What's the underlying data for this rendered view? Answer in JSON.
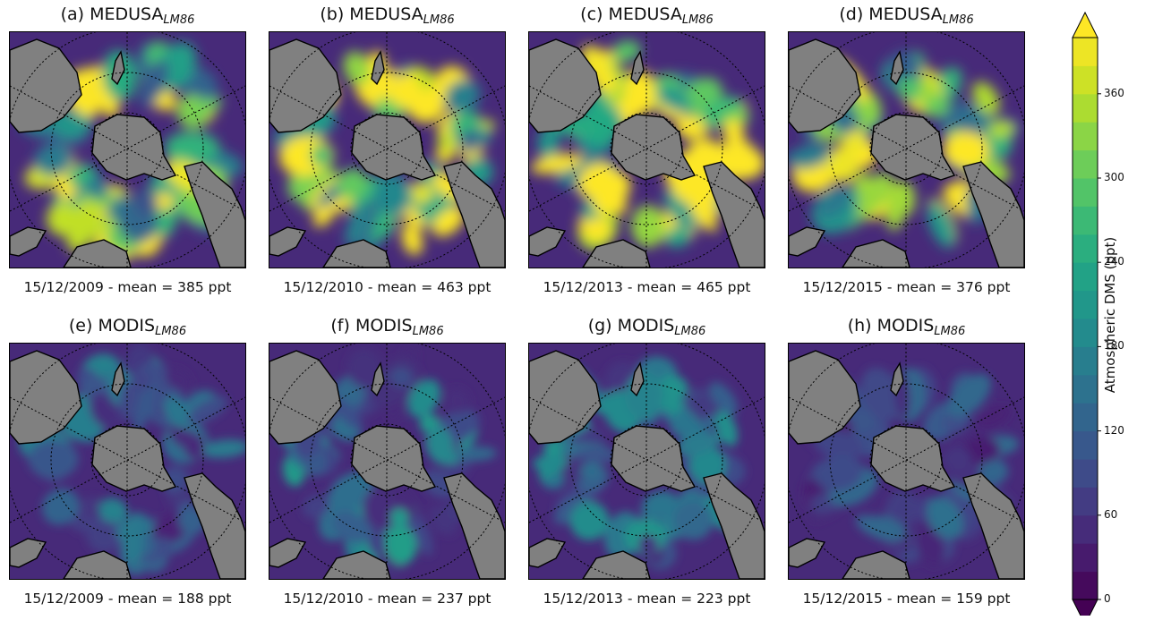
{
  "panels": [
    {
      "id": "a",
      "title_prefix": "(a) MEDUSA",
      "title_sub": "LM86",
      "caption": "15/12/2009 - mean = 385 ppt",
      "mean": 385,
      "source": "MEDUSA"
    },
    {
      "id": "b",
      "title_prefix": "(b) MEDUSA",
      "title_sub": "LM86",
      "caption": "15/12/2010 - mean = 463 ppt",
      "mean": 463,
      "source": "MEDUSA"
    },
    {
      "id": "c",
      "title_prefix": "(c) MEDUSA",
      "title_sub": "LM86",
      "caption": "15/12/2013 - mean = 465 ppt",
      "mean": 465,
      "source": "MEDUSA"
    },
    {
      "id": "d",
      "title_prefix": "(d) MEDUSA",
      "title_sub": "LM86",
      "caption": "15/12/2015 - mean = 376 ppt",
      "mean": 376,
      "source": "MEDUSA"
    },
    {
      "id": "e",
      "title_prefix": "(e) MODIS",
      "title_sub": "LM86",
      "caption": "15/12/2009 - mean = 188 ppt",
      "mean": 188,
      "source": "MODIS"
    },
    {
      "id": "f",
      "title_prefix": "(f) MODIS",
      "title_sub": "LM86",
      "caption": "15/12/2010 - mean = 237 ppt",
      "mean": 237,
      "source": "MODIS"
    },
    {
      "id": "g",
      "title_prefix": "(g) MODIS",
      "title_sub": "LM86",
      "caption": "15/12/2013 - mean = 223 ppt",
      "mean": 223,
      "source": "MODIS"
    },
    {
      "id": "h",
      "title_prefix": "(h) MODIS",
      "title_sub": "LM86",
      "caption": "15/12/2015 - mean = 159 ppt",
      "mean": 159,
      "source": "MODIS"
    }
  ],
  "colorbar": {
    "label": "Atmospheric DMS (ppt)",
    "min": 0,
    "max": 400,
    "step": 20,
    "ticks": [
      "0",
      "60",
      "120",
      "180",
      "240",
      "300",
      "360"
    ],
    "extend": "both",
    "colormap": "viridis"
  },
  "colors": {
    "land": "#808080",
    "ocean_low": "#440154",
    "ocean_high": "#fde725"
  }
}
